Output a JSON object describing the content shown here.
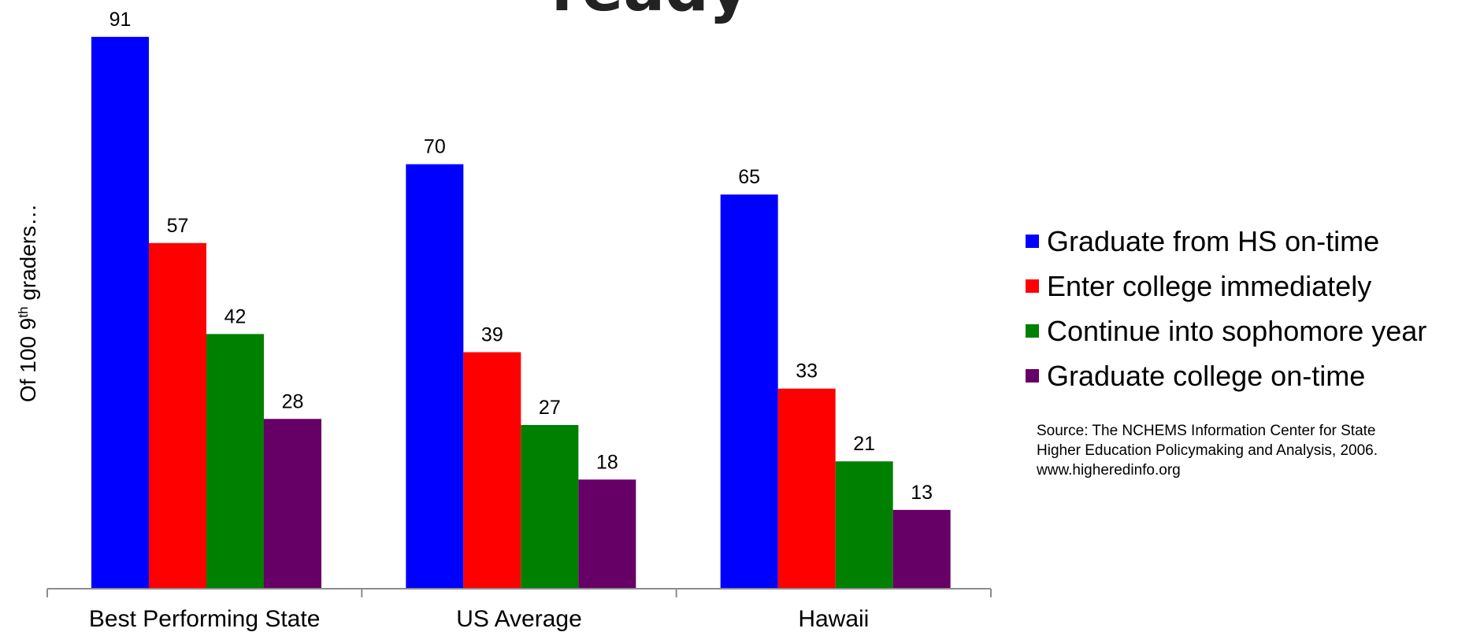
{
  "title_fragment": "ready",
  "source_note": "Source: The NCHEMS Information Center for State Higher Education Policymaking and Analysis, 2006. www.higheredinfo.org",
  "chart_data": {
    "type": "bar",
    "title": "",
    "xlabel": "",
    "ylabel_prefix": "Of 100 9",
    "ylabel_sup": "th",
    "ylabel_suffix": " graders…",
    "categories": [
      "Best Performing State",
      "US Average",
      "Hawaii"
    ],
    "series": [
      {
        "name": "Graduate from HS on-time",
        "values": [
          91,
          70,
          65
        ],
        "color": "#0000ff"
      },
      {
        "name": "Enter college immediately",
        "values": [
          57,
          39,
          33
        ],
        "color": "#ff0000"
      },
      {
        "name": "Continue into sophomore year",
        "values": [
          42,
          27,
          21
        ],
        "color": "#008000"
      },
      {
        "name": "Graduate college on-time",
        "values": [
          28,
          18,
          13
        ],
        "color": "#660066"
      }
    ],
    "ylim": [
      0,
      100
    ],
    "grid": false,
    "legend_position": "right",
    "data_labels": true
  }
}
